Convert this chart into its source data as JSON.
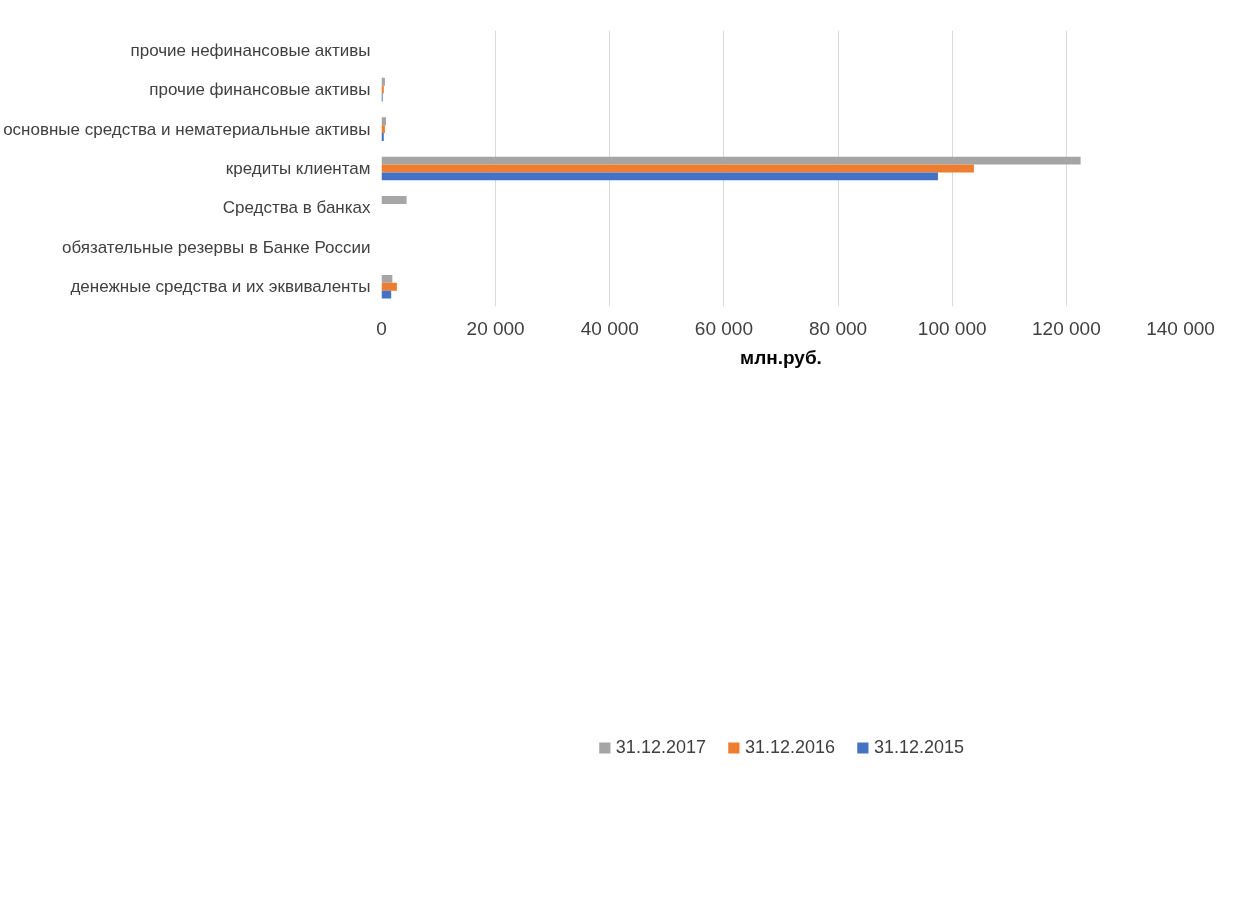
{
  "chart_data": {
    "type": "bar",
    "orientation": "horizontal",
    "xlabel": "млн.руб.",
    "categories": [
      "прочие нефинансовые активы",
      "прочие финансовые активы",
      "основные средства и нематериальные активы",
      "кредиты клиентам",
      "Средства в банках",
      "обязательные резервы в Банке России",
      "денежные средства и их эквиваленты"
    ],
    "series": [
      {
        "name": "31.12.2017",
        "color": "#a5a5a5",
        "values": [
          null,
          600,
          800,
          122500,
          4400,
          0,
          1900
        ]
      },
      {
        "name": "31.12.2016",
        "color": "#ed7d31",
        "values": [
          null,
          400,
          600,
          103800,
          0,
          0,
          2700
        ]
      },
      {
        "name": "31.12.2015",
        "color": "#4472c4",
        "values": [
          null,
          200,
          400,
          97500,
          0,
          0,
          1700
        ]
      }
    ],
    "xlim": [
      0,
      140000
    ],
    "xticks": [
      0,
      {
        "value": 20000,
        "label": "20 000"
      },
      {
        "value": 40000,
        "label": "40 000"
      },
      {
        "value": 60000,
        "label": "60 000"
      },
      {
        "value": 80000,
        "label": "80 000"
      },
      {
        "value": 100000,
        "label": "100 000"
      },
      {
        "value": 120000,
        "label": "120 000"
      },
      {
        "value": 140000,
        "label": "140 000"
      }
    ],
    "grid": "x",
    "legend": "bottom"
  }
}
